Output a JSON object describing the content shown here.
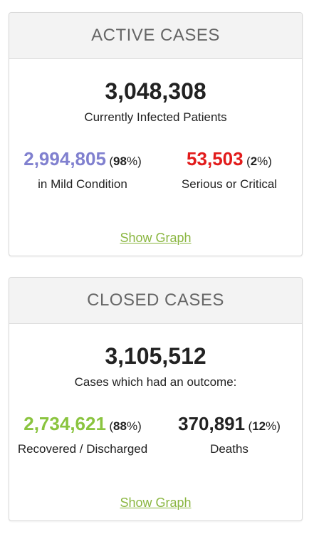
{
  "active": {
    "header": "ACTIVE CASES",
    "total": "3,048,308",
    "subtitle": "Currently Infected Patients",
    "left": {
      "number": "2,994,805",
      "pct": "98",
      "label": "in Mild Condition",
      "color": "#8080cf"
    },
    "right": {
      "number": "53,503",
      "pct": "2",
      "label": "Serious or Critical",
      "color": "#e21b1b"
    },
    "link": "Show Graph"
  },
  "closed": {
    "header": "CLOSED CASES",
    "total": "3,105,512",
    "subtitle": "Cases which had an outcome:",
    "left": {
      "number": "2,734,621",
      "pct": "88",
      "label": "Recovered / Discharged",
      "color": "#8ac43f"
    },
    "right": {
      "number": "370,891",
      "pct": "12",
      "label": "Deaths",
      "color": "#222222"
    },
    "link": "Show Graph"
  },
  "colors": {
    "link": "#8ab640",
    "header_bg": "#f3f3f3"
  }
}
